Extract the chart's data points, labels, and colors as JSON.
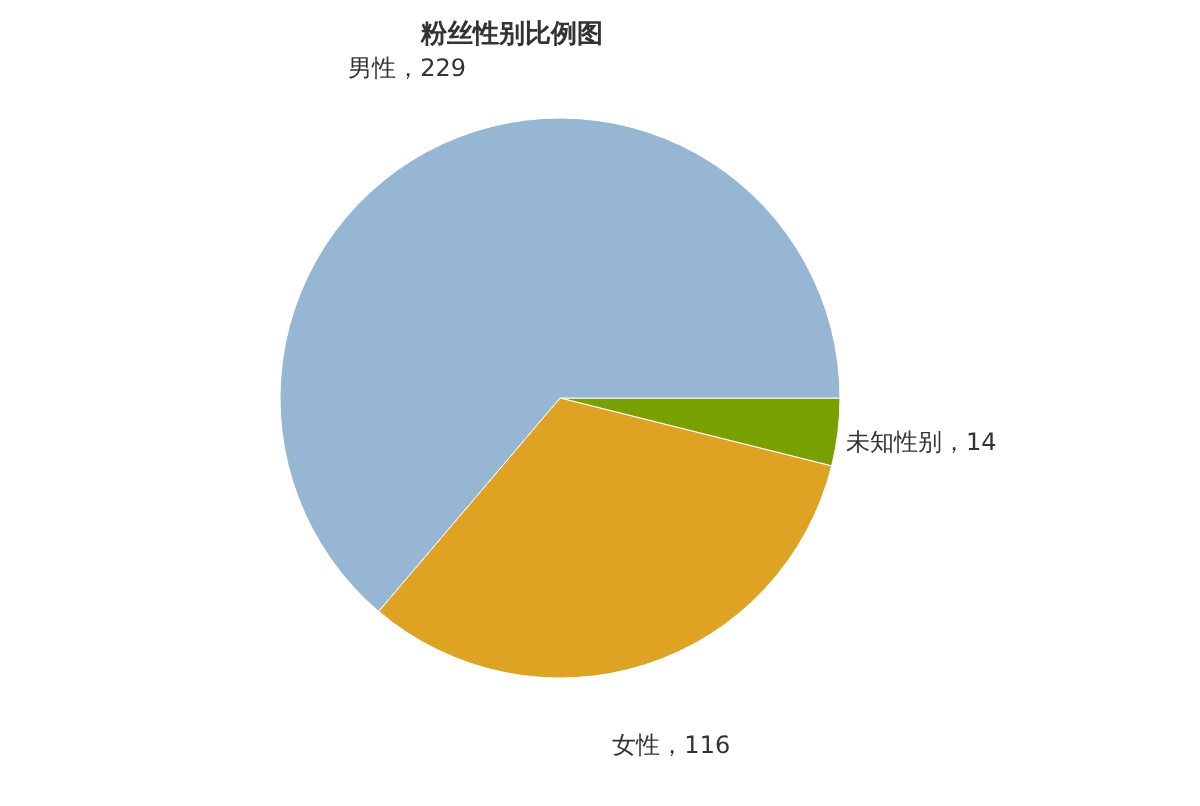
{
  "chart_data": {
    "type": "pie",
    "title": "粉丝性别比例图",
    "categories": [
      "未知性别",
      "女性",
      "男性"
    ],
    "values": [
      14,
      116,
      229
    ],
    "colors": [
      "#78a000",
      "#dea322",
      "#96b6d4"
    ],
    "value_labels": [
      "，14",
      "，116",
      "，229"
    ],
    "legend": false
  }
}
